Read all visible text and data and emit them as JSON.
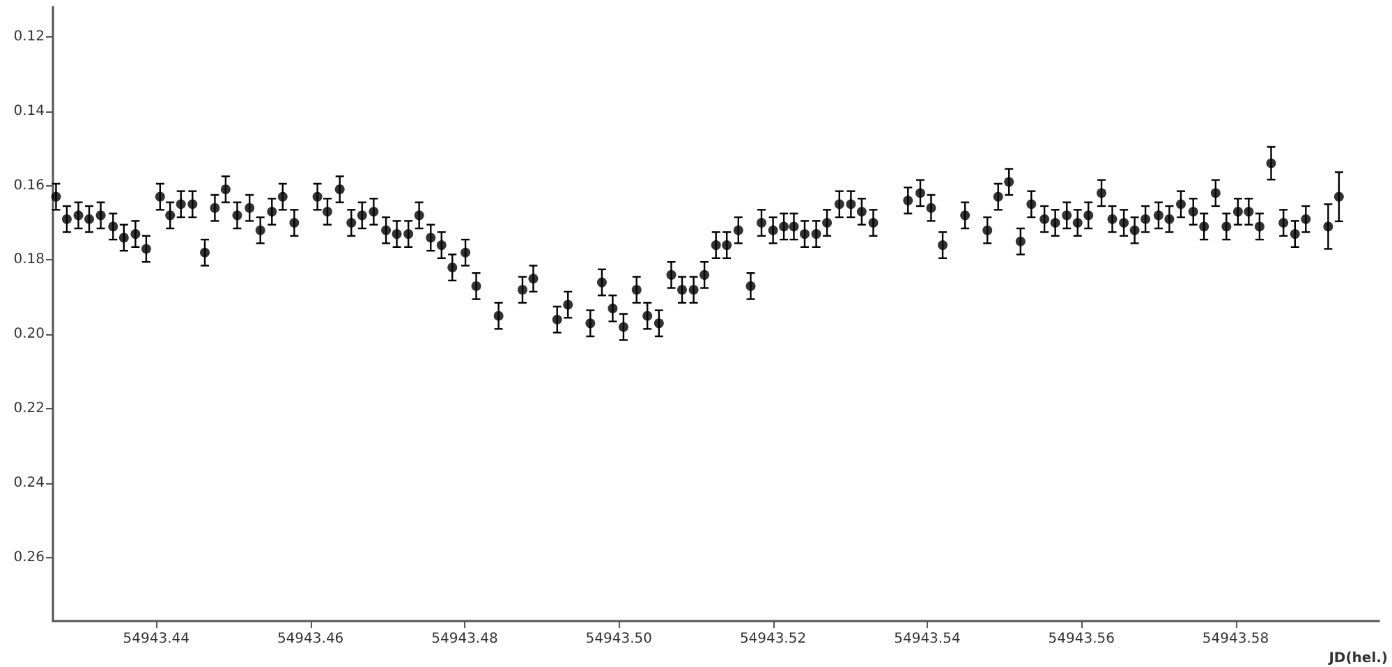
{
  "chart_data": {
    "type": "scatter",
    "xlabel": "JD(hel.)",
    "x": [
      54943.427,
      54943.4284,
      54943.4299,
      54943.4313,
      54943.4328,
      54943.4344,
      54943.4358,
      54943.4373,
      54943.4387,
      54943.4405,
      54943.4418,
      54943.4432,
      54943.4447,
      54943.4463,
      54943.4476,
      54943.449,
      54943.4505,
      54943.4521,
      54943.4535,
      54943.455,
      54943.4564,
      54943.4579,
      54943.4609,
      54943.4622,
      54943.4638,
      54943.4653,
      54943.4667,
      54943.4682,
      54943.4698,
      54943.4712,
      54943.4727,
      54943.4741,
      54943.4756,
      54943.477,
      54943.4784,
      54943.4801,
      54943.4815,
      54943.4844,
      54943.4875,
      54943.4889,
      54943.492,
      54943.4934,
      54943.4963,
      54943.4978,
      54943.4992,
      54943.5006,
      54943.5023,
      54943.5037,
      54943.5052,
      54943.5068,
      54943.5082,
      54943.5097,
      54943.5111,
      54943.5126,
      54943.514,
      54943.5155,
      54943.5171,
      54943.5185,
      54943.52,
      54943.5214,
      54943.5227,
      54943.5241,
      54943.5256,
      54943.527,
      54943.5286,
      54943.5301,
      54943.5315,
      54943.533,
      54943.5375,
      54943.5391,
      54943.5405,
      54943.542,
      54943.5449,
      54943.5478,
      54943.5492,
      54943.5506,
      54943.5521,
      54943.5535,
      54943.5552,
      54943.5566,
      54943.5581,
      54943.5595,
      54943.5609,
      54943.5626,
      54943.564,
      54943.5655,
      54943.5669,
      54943.5683,
      54943.57,
      54943.5714,
      54943.5729,
      54943.5745,
      54943.5759,
      54943.5774,
      54943.5788,
      54943.5803,
      54943.5817,
      54943.5831,
      54943.5846,
      54943.5862,
      54943.5877,
      54943.5891,
      54943.592,
      54943.5934
    ],
    "values": [
      0.163,
      0.169,
      0.168,
      0.169,
      0.168,
      0.171,
      0.174,
      0.173,
      0.177,
      0.163,
      0.168,
      0.165,
      0.165,
      0.178,
      0.166,
      0.161,
      0.168,
      0.166,
      0.172,
      0.167,
      0.163,
      0.17,
      0.163,
      0.167,
      0.161,
      0.17,
      0.168,
      0.167,
      0.172,
      0.173,
      0.173,
      0.168,
      0.174,
      0.176,
      0.182,
      0.178,
      0.187,
      0.195,
      0.188,
      0.185,
      0.196,
      0.192,
      0.197,
      0.186,
      0.193,
      0.198,
      0.188,
      0.195,
      0.197,
      0.184,
      0.188,
      0.188,
      0.184,
      0.176,
      0.176,
      0.172,
      0.187,
      0.17,
      0.172,
      0.171,
      0.171,
      0.173,
      0.173,
      0.17,
      0.165,
      0.165,
      0.167,
      0.17,
      0.164,
      0.162,
      0.166,
      0.176,
      0.168,
      0.172,
      0.163,
      0.159,
      0.175,
      0.165,
      0.169,
      0.17,
      0.168,
      0.17,
      0.168,
      0.162,
      0.169,
      0.17,
      0.172,
      0.169,
      0.168,
      0.169,
      0.165,
      0.167,
      0.171,
      0.162,
      0.171,
      0.167,
      0.167,
      0.171,
      0.154,
      0.17,
      0.173,
      0.169,
      0.171,
      0.163
    ],
    "errors": [
      0.0035,
      0.0035,
      0.0035,
      0.0035,
      0.0035,
      0.0035,
      0.0035,
      0.0035,
      0.0035,
      0.0035,
      0.0035,
      0.0035,
      0.0035,
      0.0035,
      0.0035,
      0.0035,
      0.0035,
      0.0035,
      0.0035,
      0.0035,
      0.0035,
      0.0035,
      0.0035,
      0.0035,
      0.0035,
      0.0035,
      0.0035,
      0.0035,
      0.0035,
      0.0035,
      0.0035,
      0.0035,
      0.0035,
      0.0035,
      0.0035,
      0.0035,
      0.0035,
      0.0035,
      0.0035,
      0.0035,
      0.0035,
      0.0035,
      0.0035,
      0.0035,
      0.0035,
      0.0035,
      0.0035,
      0.0035,
      0.0035,
      0.0035,
      0.0035,
      0.0035,
      0.0035,
      0.0035,
      0.0035,
      0.0035,
      0.0035,
      0.0035,
      0.0035,
      0.0035,
      0.0035,
      0.0035,
      0.0035,
      0.0035,
      0.0035,
      0.0035,
      0.0035,
      0.0035,
      0.0035,
      0.0035,
      0.0035,
      0.0035,
      0.0035,
      0.0035,
      0.0035,
      0.0035,
      0.0035,
      0.0035,
      0.0035,
      0.0035,
      0.0035,
      0.0035,
      0.0035,
      0.0035,
      0.0035,
      0.0035,
      0.0035,
      0.0035,
      0.0035,
      0.0035,
      0.0035,
      0.0035,
      0.0035,
      0.0035,
      0.0035,
      0.0035,
      0.0035,
      0.0035,
      0.0044,
      0.0035,
      0.0035,
      0.0035,
      0.006,
      0.0066
    ],
    "color": "#000000",
    "marker": "circle",
    "xlim": [
      54943.4266,
      54943.5986
    ],
    "xticks": [
      54943.44,
      54943.46,
      54943.48,
      {
        "value": 54943.5,
        "label": "54943.50"
      },
      54943.52,
      54943.54,
      54943.56,
      54943.58
    ],
    "ylim": [
      0.277,
      0.112
    ],
    "yticks": [
      0.12,
      0.14,
      0.16,
      0.18,
      {
        "value": 0.2,
        "label": "0.20"
      },
      0.22,
      0.24,
      0.26
    ],
    "grid": false
  }
}
